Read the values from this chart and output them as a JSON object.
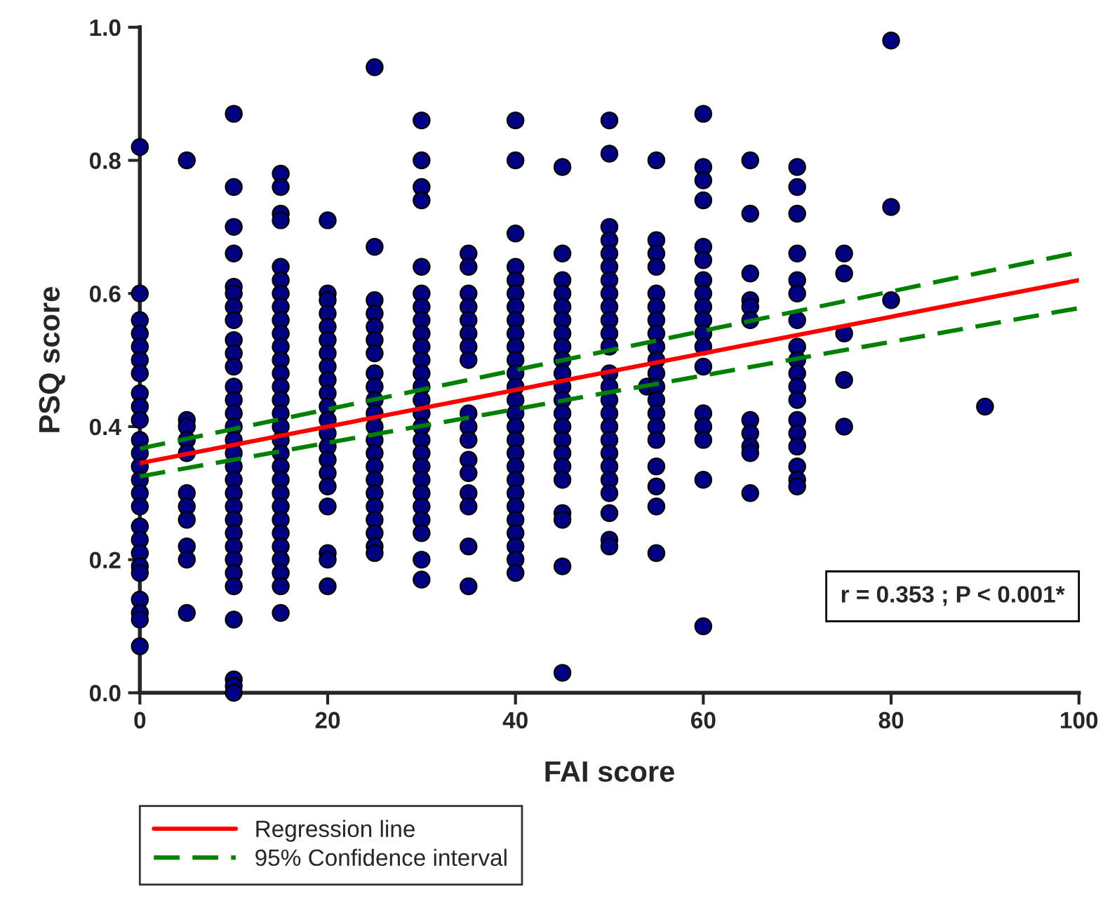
{
  "chart_data": {
    "type": "scatter",
    "xlabel": "FAI score",
    "ylabel": "PSQ score",
    "xlim": [
      0,
      100
    ],
    "xticks": [
      0,
      20,
      40,
      60,
      80,
      100
    ],
    "ylim": [
      0,
      1.0
    ],
    "yticks": [
      {
        "value": 0,
        "label": "0.0"
      },
      {
        "value": 0.2,
        "label": "0.2"
      },
      {
        "value": 0.4,
        "label": "0.4"
      },
      {
        "value": 0.6,
        "label": "0.6"
      },
      {
        "value": 0.8,
        "label": "0.8"
      },
      {
        "value": 1.0,
        "label": "1.0"
      }
    ],
    "grid": false,
    "legend": "bottom",
    "annotations": [
      "r = 0.353 ; P < 0.001*"
    ],
    "series": [
      {
        "color": "#000080",
        "marker": "circle",
        "x": [
          0,
          0,
          0,
          0,
          0,
          0,
          0,
          0,
          0,
          0,
          0,
          0,
          0,
          0,
          0,
          0,
          0,
          0,
          0,
          0,
          0,
          0,
          0,
          0,
          0,
          5,
          5,
          5,
          5,
          5,
          5,
          5,
          5,
          5,
          5,
          5,
          10,
          10,
          10,
          10,
          10,
          10,
          10,
          10,
          10,
          10,
          10,
          10,
          10,
          10,
          10,
          10,
          10,
          10,
          10,
          10,
          10,
          10,
          10,
          10,
          10,
          10,
          10,
          10,
          10,
          10,
          10,
          15,
          15,
          15,
          15,
          15,
          15,
          15,
          15,
          15,
          15,
          15,
          15,
          15,
          15,
          15,
          15,
          15,
          15,
          15,
          15,
          15,
          15,
          15,
          15,
          15,
          15,
          15,
          15,
          15,
          15,
          20,
          20,
          20,
          20,
          20,
          20,
          20,
          20,
          20,
          20,
          20,
          20,
          20,
          20,
          20,
          20,
          20,
          20,
          20,
          20,
          20,
          25,
          25,
          25,
          25,
          25,
          25,
          25,
          25,
          25,
          25,
          25,
          25,
          25,
          25,
          25,
          25,
          25,
          25,
          25,
          25,
          25,
          25,
          30,
          30,
          30,
          30,
          30,
          30,
          30,
          30,
          30,
          30,
          30,
          30,
          30,
          30,
          30,
          30,
          30,
          30,
          30,
          30,
          30,
          30,
          30,
          30,
          30,
          30,
          35,
          35,
          35,
          35,
          35,
          35,
          35,
          35,
          35,
          35,
          35,
          35,
          35,
          35,
          35,
          35,
          35,
          40,
          40,
          40,
          40,
          40,
          40,
          40,
          40,
          40,
          40,
          40,
          40,
          40,
          40,
          40,
          40,
          40,
          40,
          40,
          40,
          40,
          40,
          40,
          40,
          40,
          40,
          40,
          45,
          45,
          45,
          45,
          45,
          45,
          45,
          45,
          45,
          45,
          45,
          45,
          45,
          45,
          45,
          45,
          45,
          45,
          45,
          45,
          45,
          45,
          50,
          50,
          50,
          50,
          50,
          50,
          50,
          50,
          50,
          50,
          50,
          50,
          50,
          50,
          50,
          50,
          50,
          50,
          50,
          50,
          50,
          50,
          50,
          50,
          50,
          54,
          55,
          55,
          55,
          55,
          55,
          55,
          55,
          55,
          55,
          55,
          55,
          55,
          55,
          55,
          55,
          55,
          55,
          55,
          55,
          55,
          60,
          60,
          60,
          60,
          60,
          60,
          60,
          60,
          60,
          60,
          60,
          60,
          60,
          60,
          60,
          60,
          60,
          60,
          65,
          65,
          65,
          65,
          65,
          65,
          65,
          65,
          65,
          65,
          65,
          70,
          70,
          70,
          70,
          70,
          70,
          70,
          70,
          70,
          70,
          70,
          70,
          70,
          70,
          70,
          70,
          70,
          70,
          75,
          75,
          75,
          75,
          75,
          80,
          80,
          80,
          90
        ],
        "values": [
          0.82,
          0.6,
          0.56,
          0.54,
          0.52,
          0.5,
          0.48,
          0.45,
          0.43,
          0.41,
          0.38,
          0.36,
          0.34,
          0.32,
          0.3,
          0.28,
          0.25,
          0.23,
          0.21,
          0.19,
          0.18,
          0.14,
          0.12,
          0.11,
          0.07,
          0.8,
          0.41,
          0.4,
          0.38,
          0.36,
          0.3,
          0.28,
          0.26,
          0.22,
          0.2,
          0.12,
          0.87,
          0.76,
          0.7,
          0.66,
          0.61,
          0.6,
          0.58,
          0.56,
          0.53,
          0.51,
          0.49,
          0.46,
          0.44,
          0.42,
          0.4,
          0.38,
          0.36,
          0.34,
          0.32,
          0.3,
          0.28,
          0.26,
          0.24,
          0.22,
          0.2,
          0.18,
          0.16,
          0.11,
          0.02,
          0.01,
          0.0,
          0.78,
          0.76,
          0.72,
          0.71,
          0.64,
          0.62,
          0.6,
          0.58,
          0.56,
          0.54,
          0.52,
          0.5,
          0.48,
          0.46,
          0.44,
          0.42,
          0.4,
          0.38,
          0.36,
          0.34,
          0.32,
          0.3,
          0.28,
          0.26,
          0.24,
          0.22,
          0.2,
          0.18,
          0.16,
          0.12,
          0.71,
          0.6,
          0.59,
          0.57,
          0.55,
          0.53,
          0.51,
          0.49,
          0.47,
          0.45,
          0.43,
          0.41,
          0.39,
          0.37,
          0.35,
          0.33,
          0.31,
          0.28,
          0.21,
          0.2,
          0.16,
          0.94,
          0.67,
          0.59,
          0.57,
          0.55,
          0.53,
          0.51,
          0.48,
          0.46,
          0.44,
          0.42,
          0.4,
          0.38,
          0.36,
          0.34,
          0.32,
          0.3,
          0.28,
          0.26,
          0.24,
          0.22,
          0.21,
          0.86,
          0.8,
          0.76,
          0.74,
          0.64,
          0.6,
          0.58,
          0.56,
          0.54,
          0.52,
          0.5,
          0.48,
          0.46,
          0.44,
          0.42,
          0.4,
          0.38,
          0.36,
          0.34,
          0.32,
          0.3,
          0.28,
          0.26,
          0.24,
          0.2,
          0.17,
          0.66,
          0.64,
          0.6,
          0.58,
          0.56,
          0.54,
          0.52,
          0.5,
          0.42,
          0.4,
          0.38,
          0.35,
          0.33,
          0.3,
          0.28,
          0.22,
          0.16,
          0.86,
          0.8,
          0.69,
          0.64,
          0.62,
          0.6,
          0.58,
          0.56,
          0.54,
          0.52,
          0.5,
          0.48,
          0.46,
          0.44,
          0.42,
          0.4,
          0.38,
          0.36,
          0.34,
          0.32,
          0.3,
          0.28,
          0.26,
          0.24,
          0.22,
          0.2,
          0.18,
          0.79,
          0.66,
          0.62,
          0.6,
          0.58,
          0.56,
          0.54,
          0.52,
          0.5,
          0.48,
          0.46,
          0.44,
          0.42,
          0.4,
          0.38,
          0.36,
          0.34,
          0.32,
          0.27,
          0.26,
          0.19,
          0.03,
          0.86,
          0.81,
          0.7,
          0.68,
          0.66,
          0.64,
          0.62,
          0.6,
          0.58,
          0.56,
          0.54,
          0.52,
          0.48,
          0.46,
          0.44,
          0.42,
          0.4,
          0.38,
          0.36,
          0.34,
          0.32,
          0.3,
          0.27,
          0.23,
          0.22,
          0.46,
          0.8,
          0.68,
          0.66,
          0.64,
          0.6,
          0.58,
          0.56,
          0.54,
          0.52,
          0.5,
          0.48,
          0.46,
          0.44,
          0.42,
          0.4,
          0.38,
          0.34,
          0.31,
          0.28,
          0.21,
          0.87,
          0.79,
          0.77,
          0.74,
          0.67,
          0.65,
          0.62,
          0.6,
          0.58,
          0.56,
          0.54,
          0.52,
          0.49,
          0.42,
          0.4,
          0.38,
          0.32,
          0.1,
          0.8,
          0.72,
          0.63,
          0.59,
          0.58,
          0.56,
          0.41,
          0.39,
          0.37,
          0.36,
          0.3,
          0.79,
          0.76,
          0.72,
          0.66,
          0.62,
          0.6,
          0.56,
          0.52,
          0.5,
          0.48,
          0.46,
          0.44,
          0.41,
          0.39,
          0.37,
          0.34,
          0.32,
          0.31,
          0.66,
          0.63,
          0.54,
          0.47,
          0.4,
          0.98,
          0.73,
          0.59,
          0.43
        ]
      },
      {
        "type": "line",
        "name": "Regression line",
        "color": "#ff0000",
        "line_style": "solid",
        "x": [
          0,
          100
        ],
        "values": [
          0.345,
          0.62
        ]
      },
      {
        "type": "line",
        "name": "95% Confidence interval",
        "color": "#008000",
        "line_style": "dashed",
        "x": [
          0,
          100
        ],
        "values": [
          0.367,
          0.662
        ]
      },
      {
        "type": "line",
        "color": "#008000",
        "line_style": "dashed",
        "x": [
          0,
          100
        ],
        "values": [
          0.325,
          0.578
        ]
      }
    ]
  }
}
